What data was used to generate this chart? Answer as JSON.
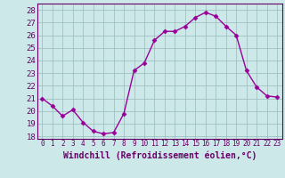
{
  "x": [
    0,
    1,
    2,
    3,
    4,
    5,
    6,
    7,
    8,
    9,
    10,
    11,
    12,
    13,
    14,
    15,
    16,
    17,
    18,
    19,
    20,
    21,
    22,
    23
  ],
  "y": [
    21,
    20.4,
    19.6,
    20.1,
    19.1,
    18.4,
    18.2,
    18.3,
    19.8,
    23.2,
    23.8,
    25.6,
    26.3,
    26.3,
    26.7,
    27.4,
    27.8,
    27.5,
    26.7,
    26.0,
    23.2,
    21.9,
    21.2,
    21.1
  ],
  "line_color": "#990099",
  "marker": "D",
  "marker_size": 2.5,
  "linewidth": 1.0,
  "xlabel": "Windchill (Refroidissement éolien,°C)",
  "xlabel_fontsize": 7,
  "ylabel_ticks": [
    18,
    19,
    20,
    21,
    22,
    23,
    24,
    25,
    26,
    27,
    28
  ],
  "xtick_labels": [
    "0",
    "1",
    "2",
    "3",
    "4",
    "5",
    "6",
    "7",
    "8",
    "9",
    "10",
    "11",
    "12",
    "13",
    "14",
    "15",
    "16",
    "17",
    "18",
    "19",
    "20",
    "21",
    "22",
    "23"
  ],
  "ylim": [
    17.8,
    28.5
  ],
  "xlim": [
    -0.5,
    23.5
  ],
  "bg_color": "#cce8e8",
  "grid_color": "#99bbbb",
  "line_border_color": "#660066",
  "label_color": "#660066",
  "tick_fontsize": 5.5,
  "ytick_fontsize": 6.5
}
